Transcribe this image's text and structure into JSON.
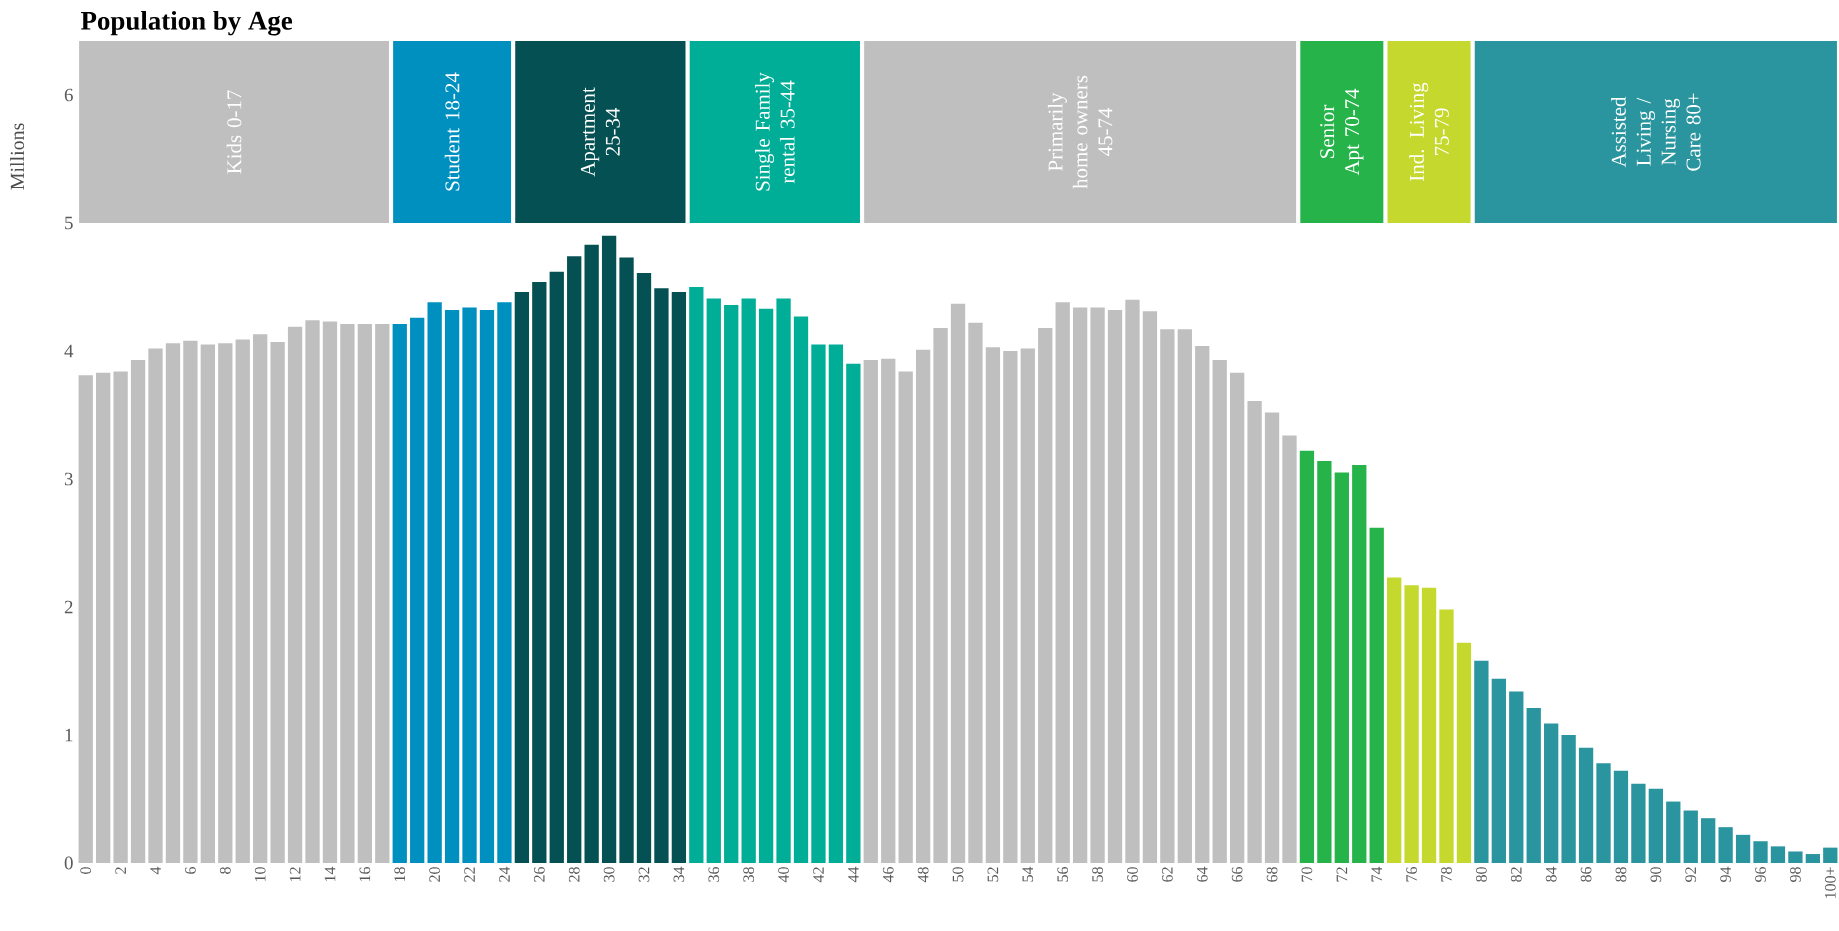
{
  "chart_data": [
    {
      "type": "bar",
      "title": "Population by Age",
      "ylabel": "Millions",
      "x": [
        0,
        1,
        2,
        3,
        4,
        5,
        6,
        7,
        8,
        9,
        10,
        11,
        12,
        13,
        14,
        15,
        16,
        17,
        18,
        19,
        20,
        21,
        22,
        23,
        24,
        25,
        26,
        27,
        28,
        29,
        30,
        31,
        32,
        33,
        34,
        35,
        36,
        37,
        38,
        39,
        40,
        41,
        42,
        43,
        44,
        45,
        46,
        47,
        48,
        49,
        50,
        51,
        52,
        53,
        54,
        55,
        56,
        57,
        58,
        59,
        60,
        61,
        62,
        63,
        64,
        65,
        66,
        67,
        68,
        69,
        70,
        71,
        72,
        73,
        74,
        75,
        76,
        77,
        78,
        79,
        80,
        81,
        82,
        83,
        84,
        85,
        86,
        87,
        88,
        89,
        90,
        91,
        92,
        93,
        94,
        95,
        96,
        97,
        98,
        99,
        100
      ],
      "values": [
        3.81,
        3.83,
        3.84,
        3.93,
        4.02,
        4.06,
        4.08,
        4.05,
        4.06,
        4.09,
        4.13,
        4.07,
        4.19,
        4.24,
        4.23,
        4.21,
        4.21,
        4.21,
        4.21,
        4.26,
        4.38,
        4.32,
        4.34,
        4.32,
        4.38,
        4.46,
        4.54,
        4.62,
        4.74,
        4.83,
        4.9,
        4.73,
        4.61,
        4.49,
        4.46,
        4.5,
        4.41,
        4.36,
        4.41,
        4.33,
        4.41,
        4.27,
        4.05,
        4.05,
        3.9,
        3.93,
        3.94,
        3.84,
        4.01,
        4.18,
        4.37,
        4.22,
        4.03,
        4.0,
        4.02,
        4.18,
        4.38,
        4.34,
        4.34,
        4.32,
        4.4,
        4.31,
        4.17,
        4.17,
        4.04,
        3.93,
        3.83,
        3.61,
        3.52,
        3.34,
        3.22,
        3.14,
        3.05,
        3.11,
        2.62,
        2.23,
        2.17,
        2.15,
        1.98,
        1.72,
        1.58,
        1.44,
        1.34,
        1.21,
        1.09,
        1.0,
        0.9,
        0.78,
        0.72,
        0.62,
        0.58,
        0.48,
        0.41,
        0.35,
        0.28,
        0.22,
        0.17,
        0.13,
        0.09,
        0.07,
        0.12
      ],
      "colors": [
        "#bfbfbf",
        "#bfbfbf",
        "#bfbfbf",
        "#bfbfbf",
        "#bfbfbf",
        "#bfbfbf",
        "#bfbfbf",
        "#bfbfbf",
        "#bfbfbf",
        "#bfbfbf",
        "#bfbfbf",
        "#bfbfbf",
        "#bfbfbf",
        "#bfbfbf",
        "#bfbfbf",
        "#bfbfbf",
        "#bfbfbf",
        "#bfbfbf",
        "#0090c0",
        "#0090c0",
        "#0090c0",
        "#0090c0",
        "#0090c0",
        "#0090c0",
        "#0090c0",
        "#055052",
        "#055052",
        "#055052",
        "#055052",
        "#055052",
        "#055052",
        "#055052",
        "#055052",
        "#055052",
        "#055052",
        "#00ad96",
        "#00ad96",
        "#00ad96",
        "#00ad96",
        "#00ad96",
        "#00ad96",
        "#00ad96",
        "#00ad96",
        "#00ad96",
        "#00ad96",
        "#bfbfbf",
        "#bfbfbf",
        "#bfbfbf",
        "#bfbfbf",
        "#bfbfbf",
        "#bfbfbf",
        "#bfbfbf",
        "#bfbfbf",
        "#bfbfbf",
        "#bfbfbf",
        "#bfbfbf",
        "#bfbfbf",
        "#bfbfbf",
        "#bfbfbf",
        "#bfbfbf",
        "#bfbfbf",
        "#bfbfbf",
        "#bfbfbf",
        "#bfbfbf",
        "#bfbfbf",
        "#bfbfbf",
        "#bfbfbf",
        "#bfbfbf",
        "#bfbfbf",
        "#bfbfbf",
        "#26b34a",
        "#26b34a",
        "#26b34a",
        "#26b34a",
        "#26b34a",
        "#c5d82e",
        "#c5d82e",
        "#c5d82e",
        "#c5d82e",
        "#c5d82e",
        "#2a959e",
        "#2a959e",
        "#2a959e",
        "#2a959e",
        "#2a959e",
        "#2a959e",
        "#2a959e",
        "#2a959e",
        "#2a959e",
        "#2a959e",
        "#2a959e",
        "#2a959e",
        "#2a959e",
        "#2a959e",
        "#2a959e",
        "#2a959e",
        "#2a959e",
        "#2a959e",
        "#2a959e",
        "#2a959e",
        "#2a959e"
      ],
      "xlim": [
        -0.5,
        100.5
      ],
      "xticks": [
        0,
        2,
        4,
        6,
        8,
        10,
        12,
        14,
        16,
        18,
        20,
        22,
        24,
        26,
        28,
        30,
        32,
        34,
        36,
        38,
        40,
        42,
        44,
        46,
        48,
        50,
        52,
        54,
        56,
        58,
        60,
        62,
        64,
        66,
        68,
        70,
        72,
        74,
        76,
        78,
        80,
        82,
        84,
        86,
        88,
        90,
        92,
        94,
        96,
        98,
        {
          "value": 100,
          "label": "100+"
        }
      ],
      "ylim": [
        0,
        6
      ],
      "yticks": [
        0,
        1,
        2,
        3,
        4,
        5,
        6
      ],
      "grid": false
    },
    {
      "type": "other",
      "annotations": [
        "Kids 0-17",
        "Student 18-24",
        "Apartment 25-34",
        "Single Family rental 35-44",
        "Primarily home owners 45-74",
        "Senior Apt 70-74",
        "Ind. Living 75-79",
        "Assisted Living / Nursing Care 80+"
      ]
    }
  ]
}
